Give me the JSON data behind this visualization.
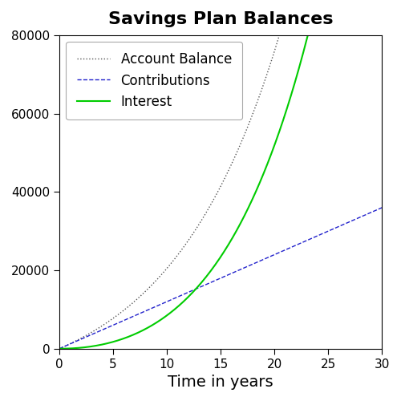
{
  "title": "Savings Plan Balances",
  "xlabel": "Time in years",
  "ylabel": "",
  "monthly_contribution": 100,
  "annual_rate": 0.1,
  "years": 30,
  "xlim": [
    0,
    30
  ],
  "ylim": [
    0,
    80000
  ],
  "xticks": [
    0,
    5,
    10,
    15,
    20,
    25,
    30
  ],
  "yticks": [
    0,
    20000,
    40000,
    60000,
    80000
  ],
  "line_account_balance": {
    "color": "#555555",
    "linestyle": "dotted",
    "linewidth": 1.0,
    "label": "Account Balance"
  },
  "line_contributions": {
    "color": "#2222cc",
    "linestyle": "dashed",
    "linewidth": 1.0,
    "label": "Contributions"
  },
  "line_interest": {
    "color": "#00cc00",
    "linestyle": "solid",
    "linewidth": 1.5,
    "label": "Interest"
  },
  "title_fontsize": 16,
  "title_fontweight": "bold",
  "axis_label_fontsize": 14,
  "tick_fontsize": 11,
  "legend_fontsize": 12,
  "background_color": "#ffffff",
  "legend_loc": "upper left",
  "figsize": [
    5.0,
    5.0
  ],
  "dpi": 100
}
